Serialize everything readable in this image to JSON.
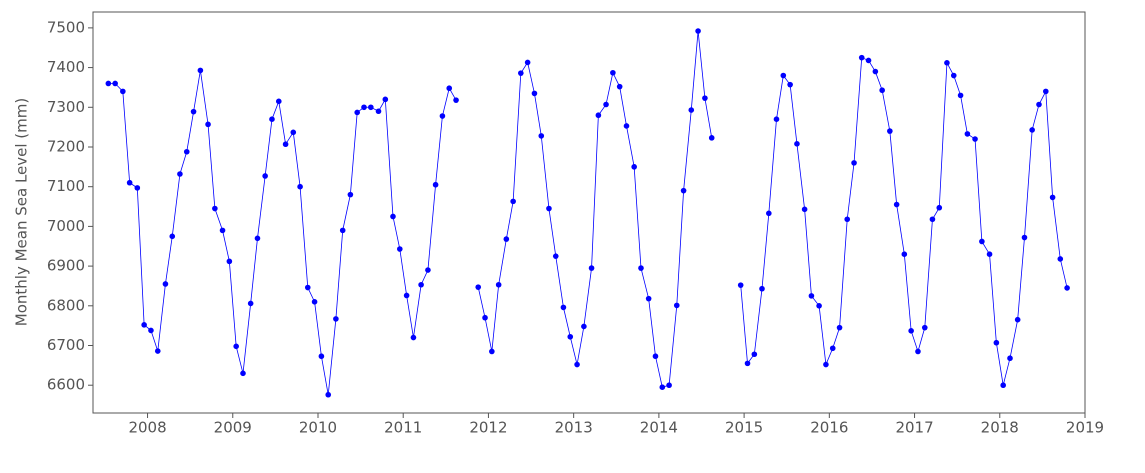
{
  "chart_data": {
    "type": "line",
    "y_label": "Monthly Mean Sea Level (mm)",
    "x": [
      2007.54,
      2007.62,
      2007.71,
      2007.79,
      2007.88,
      2007.96,
      2008.04,
      2008.12,
      2008.21,
      2008.29,
      2008.38,
      2008.46,
      2008.54,
      2008.62,
      2008.71,
      2008.79,
      2008.88,
      2008.96,
      2009.04,
      2009.12,
      2009.21,
      2009.29,
      2009.38,
      2009.46,
      2009.54,
      2009.62,
      2009.71,
      2009.79,
      2009.88,
      2009.96,
      2010.04,
      2010.12,
      2010.21,
      2010.29,
      2010.38,
      2010.46,
      2010.54,
      2010.62,
      2010.71,
      2010.79,
      2010.88,
      2010.96,
      2011.04,
      2011.12,
      2011.21,
      2011.29,
      2011.38,
      2011.46,
      2011.54,
      2011.62,
      2011.71,
      2011.79,
      2011.88,
      2011.96,
      2012.04,
      2012.12,
      2012.21,
      2012.29,
      2012.38,
      2012.46,
      2012.54,
      2012.62,
      2012.71,
      2012.79,
      2012.88,
      2012.96,
      2013.04,
      2013.12,
      2013.21,
      2013.29,
      2013.38,
      2013.46,
      2013.54,
      2013.62,
      2013.71,
      2013.79,
      2013.88,
      2013.96,
      2014.04,
      2014.12,
      2014.21,
      2014.29,
      2014.38,
      2014.46,
      2014.54,
      2014.62,
      2014.71,
      2014.79,
      2014.88,
      2014.96,
      2015.04,
      2015.12,
      2015.21,
      2015.29,
      2015.38,
      2015.46,
      2015.54,
      2015.62,
      2015.71,
      2015.79,
      2015.88,
      2015.96,
      2016.04,
      2016.12,
      2016.21,
      2016.29,
      2016.38,
      2016.46,
      2016.54,
      2016.62,
      2016.71,
      2016.79,
      2016.88,
      2016.96,
      2017.04,
      2017.12,
      2017.21,
      2017.29,
      2017.38,
      2017.46,
      2017.54,
      2017.62,
      2017.71,
      2017.79,
      2017.88,
      2017.96,
      2018.04,
      2018.12,
      2018.21,
      2018.29,
      2018.38,
      2018.46,
      2018.54,
      2018.62,
      2018.71,
      2018.79
    ],
    "series": [
      {
        "color": "#0000ff",
        "values": [
          7360,
          7360,
          7340,
          7110,
          7097,
          6752,
          6738,
          6686,
          6855,
          6975,
          7132,
          7188,
          7289,
          7393,
          7257,
          7045,
          6990,
          6912,
          6698,
          6630,
          6806,
          6970,
          7127,
          7270,
          7315,
          7207,
          7237,
          7100,
          6846,
          6810,
          6673,
          6576,
          6767,
          6990,
          7080,
          7287,
          7300,
          7300,
          7290,
          7320,
          7025,
          6943,
          6826,
          6720,
          6853,
          6890,
          7105,
          7278,
          7348,
          7318,
          null,
          null,
          6847,
          6770,
          6685,
          6853,
          6968,
          7063,
          7386,
          7413,
          7335,
          7228,
          7045,
          6925,
          6796,
          6722,
          6652,
          6748,
          6895,
          7280,
          7307,
          7387,
          7352,
          7253,
          7150,
          6895,
          6818,
          6673,
          6595,
          6600,
          6801,
          7090,
          7293,
          7492,
          7323,
          7223,
          null,
          null,
          null,
          6852,
          6655,
          6678,
          6843,
          7033,
          7270,
          7380,
          7357,
          7208,
          7043,
          6825,
          6800,
          6652,
          6693,
          6745,
          7018,
          7160,
          7425,
          7418,
          7390,
          7343,
          7240,
          7055,
          6930,
          6737,
          6685,
          6745,
          7018,
          7047,
          7412,
          7380,
          7330,
          7233,
          7220,
          6962,
          6930,
          6707,
          6600,
          6668,
          6765,
          6972,
          7243,
          7307,
          7340,
          7073,
          6918,
          6845
        ]
      }
    ],
    "xlim": [
      2007.36,
      2019.0
    ],
    "xticks": [
      2008,
      2009,
      2010,
      2011,
      2012,
      2013,
      2014,
      2015,
      2016,
      2017,
      2018,
      2019
    ],
    "ylim": [
      6530,
      7540
    ],
    "yticks": [
      6600,
      6700,
      6800,
      6900,
      7000,
      7100,
      7200,
      7300,
      7400,
      7500
    ]
  }
}
